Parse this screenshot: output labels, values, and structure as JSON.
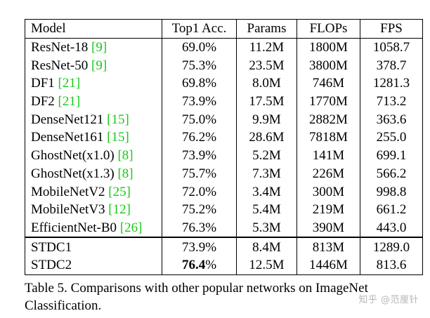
{
  "table": {
    "headers": [
      "Model",
      "Top1 Acc.",
      "Params",
      "FLOPs",
      "FPS"
    ],
    "rows": [
      {
        "model": "ResNet-18 ",
        "ref": "[9]",
        "acc": "69.0%",
        "params": "11.2M",
        "flops": "1800M",
        "fps": "1058.7"
      },
      {
        "model": "ResNet-50 ",
        "ref": "[9]",
        "acc": "75.3%",
        "params": "23.5M",
        "flops": "3800M",
        "fps": "378.7"
      },
      {
        "model": "DF1 ",
        "ref": "[21]",
        "acc": "69.8%",
        "params": "8.0M",
        "flops": "746M",
        "fps": "1281.3"
      },
      {
        "model": "DF2 ",
        "ref": "[21]",
        "acc": "73.9%",
        "params": "17.5M",
        "flops": "1770M",
        "fps": "713.2"
      },
      {
        "model": "DenseNet121 ",
        "ref": "[15]",
        "acc": "75.0%",
        "params": "9.9M",
        "flops": "2882M",
        "fps": "363.6"
      },
      {
        "model": "DenseNet161 ",
        "ref": "[15]",
        "acc": "76.2%",
        "params": "28.6M",
        "flops": "7818M",
        "fps": "255.0"
      },
      {
        "model": "GhostNet(x1.0) ",
        "ref": "[8]",
        "acc": "73.9%",
        "params": "5.2M",
        "flops": "141M",
        "fps": "699.1"
      },
      {
        "model": "GhostNet(x1.3) ",
        "ref": "[8]",
        "acc": "75.7%",
        "params": "7.3M",
        "flops": "226M",
        "fps": "566.2"
      },
      {
        "model": "MobileNetV2 ",
        "ref": "[25]",
        "acc": "72.0%",
        "params": "3.4M",
        "flops": "300M",
        "fps": "998.8"
      },
      {
        "model": "MobileNetV3 ",
        "ref": "[12]",
        "acc": "75.2%",
        "params": "5.4M",
        "flops": "219M",
        "fps": "661.2"
      },
      {
        "model": "EfficientNet-B0 ",
        "ref": "[26]",
        "acc": "76.3%",
        "params": "5.3M",
        "flops": "390M",
        "fps": "443.0"
      }
    ],
    "ours": [
      {
        "model": "STDC1",
        "acc": "73.9%",
        "params": "8.4M",
        "flops": "813M",
        "fps": "1289.0"
      },
      {
        "model": "STDC2",
        "acc_bold": "76.4",
        "acc_suffix": "%",
        "params": "12.5M",
        "flops": "1446M",
        "fps": "813.6"
      }
    ]
  },
  "caption": "Table 5. Comparisons with other popular networks on ImageNet Classification.",
  "watermark": "知乎 @范厘针"
}
